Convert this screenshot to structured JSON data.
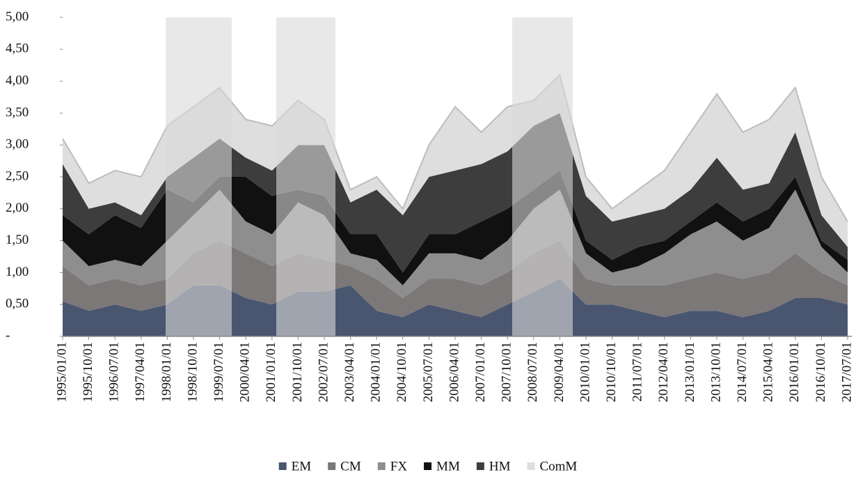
{
  "chart_data": {
    "type": "stacked-area",
    "categories": [
      "1995/01/01",
      "1995/10/01",
      "1996/07/01",
      "1997/04/01",
      "1998/01/01",
      "1998/10/01",
      "1999/07/01",
      "2000/04/01",
      "2001/01/01",
      "2001/10/01",
      "2002/07/01",
      "2003/04/01",
      "2004/01/01",
      "2004/10/01",
      "2005/07/01",
      "2006/04/01",
      "2007/01/01",
      "2007/10/01",
      "2008/07/01",
      "2009/04/01",
      "2010/01/01",
      "2010/10/01",
      "2011/07/01",
      "2012/04/01",
      "2013/01/01",
      "2013/10/01",
      "2014/07/01",
      "2015/04/01",
      "2016/01/01",
      "2016/10/01",
      "2017/07/01"
    ],
    "series": [
      {
        "name": "EM",
        "color": "#4a5670",
        "values": [
          0.55,
          0.4,
          0.5,
          0.4,
          0.5,
          0.8,
          0.8,
          0.6,
          0.5,
          0.7,
          0.7,
          0.8,
          0.4,
          0.3,
          0.5,
          0.4,
          0.3,
          0.5,
          0.7,
          0.9,
          0.5,
          0.5,
          0.4,
          0.3,
          0.4,
          0.4,
          0.3,
          0.4,
          0.6,
          0.6,
          0.5
        ]
      },
      {
        "name": "CM",
        "color": "#7d7878",
        "values": [
          0.55,
          0.4,
          0.4,
          0.4,
          0.4,
          0.5,
          0.7,
          0.7,
          0.6,
          0.6,
          0.5,
          0.3,
          0.5,
          0.3,
          0.4,
          0.5,
          0.5,
          0.5,
          0.6,
          0.6,
          0.4,
          0.3,
          0.4,
          0.5,
          0.5,
          0.6,
          0.6,
          0.6,
          0.7,
          0.4,
          0.3
        ]
      },
      {
        "name": "FX",
        "color": "#8e8e8e",
        "values": [
          0.4,
          0.3,
          0.3,
          0.3,
          0.6,
          0.6,
          0.8,
          0.5,
          0.5,
          0.8,
          0.7,
          0.2,
          0.3,
          0.2,
          0.4,
          0.4,
          0.4,
          0.5,
          0.7,
          0.8,
          0.4,
          0.2,
          0.3,
          0.5,
          0.7,
          0.8,
          0.6,
          0.7,
          1.0,
          0.4,
          0.2
        ]
      },
      {
        "name": "MM",
        "color": "#111111",
        "values": [
          0.4,
          0.5,
          0.7,
          0.6,
          0.8,
          0.2,
          0.2,
          0.7,
          0.6,
          0.2,
          0.3,
          0.3,
          0.4,
          0.2,
          0.3,
          0.3,
          0.6,
          0.5,
          0.3,
          0.3,
          0.2,
          0.2,
          0.3,
          0.2,
          0.2,
          0.3,
          0.3,
          0.3,
          0.2,
          0.1,
          0.2
        ]
      },
      {
        "name": "HM",
        "color": "#3d3d3d",
        "values": [
          0.8,
          0.4,
          0.2,
          0.2,
          0.2,
          0.7,
          0.6,
          0.3,
          0.4,
          0.7,
          0.8,
          0.5,
          0.7,
          0.9,
          0.9,
          1.0,
          0.9,
          0.9,
          1.0,
          0.9,
          0.7,
          0.6,
          0.5,
          0.5,
          0.5,
          0.7,
          0.5,
          0.4,
          0.7,
          0.4,
          0.2
        ]
      },
      {
        "name": "ComM",
        "color": "#dedede",
        "values": [
          0.4,
          0.4,
          0.5,
          0.6,
          0.8,
          0.8,
          0.8,
          0.6,
          0.7,
          0.7,
          0.4,
          0.2,
          0.2,
          0.1,
          0.5,
          1.0,
          0.5,
          0.7,
          0.4,
          0.6,
          0.3,
          0.2,
          0.4,
          0.6,
          0.9,
          1.0,
          0.9,
          1.0,
          0.7,
          0.6,
          0.4
        ]
      }
    ],
    "ylim": [
      0,
      5
    ],
    "yticks": [
      {
        "value": 0,
        "label": "-"
      },
      {
        "value": 0.5,
        "label": "0,50"
      },
      {
        "value": 1,
        "label": "1,00"
      },
      {
        "value": 1.5,
        "label": "1,50"
      },
      {
        "value": 2,
        "label": "2,00"
      },
      {
        "value": 2.5,
        "label": "2,50"
      },
      {
        "value": 3,
        "label": "3,00"
      },
      {
        "value": 3.5,
        "label": "3,50"
      },
      {
        "value": 4,
        "label": "4,00"
      },
      {
        "value": 4.5,
        "label": "4,50"
      },
      {
        "value": 5,
        "label": "5,00"
      }
    ],
    "legend": "bottom"
  }
}
